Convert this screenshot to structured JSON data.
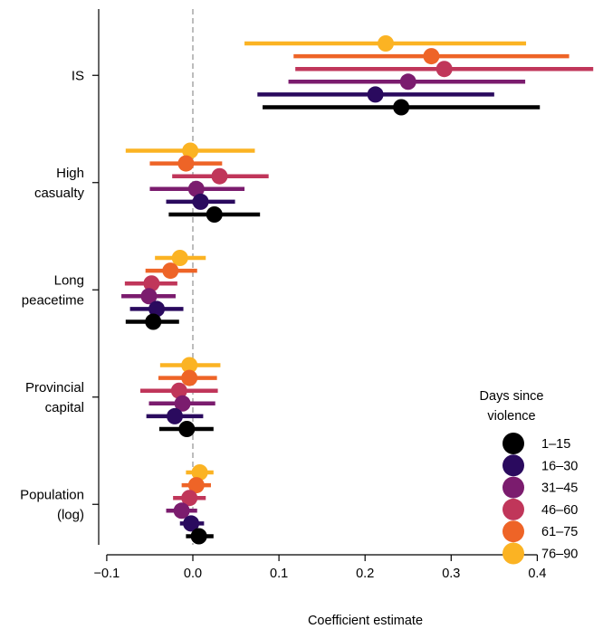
{
  "chart_data": {
    "type": "forest",
    "xlabel": "Coefficient estimate",
    "xlim": [
      -0.13,
      0.48
    ],
    "xticks": [
      -0.1,
      0.0,
      0.1,
      0.2,
      0.3,
      0.4
    ],
    "xtick_labels": [
      "−0.1",
      "0.0",
      "0.1",
      "0.2",
      "0.3",
      "0.4"
    ],
    "reference_line": 0.0,
    "legend": {
      "title_lines": [
        "Days since",
        "violence"
      ],
      "placement": "bottom-right"
    },
    "series": [
      {
        "name": "1–15",
        "color": "#000000"
      },
      {
        "name": "16–30",
        "color": "#2a0a5e"
      },
      {
        "name": "31–45",
        "color": "#7b1c6e"
      },
      {
        "name": "46–60",
        "color": "#c0365a"
      },
      {
        "name": "61–75",
        "color": "#ee6427"
      },
      {
        "name": "76–90",
        "color": "#fbb323"
      }
    ],
    "groups": [
      {
        "label_lines": [
          "IS"
        ],
        "estimates": [
          {
            "series": "76–90",
            "est": 0.224,
            "lo": 0.06,
            "hi": 0.387
          },
          {
            "series": "61–75",
            "est": 0.277,
            "lo": 0.117,
            "hi": 0.437
          },
          {
            "series": "46–60",
            "est": 0.292,
            "lo": 0.119,
            "hi": 0.465
          },
          {
            "series": "31–45",
            "est": 0.25,
            "lo": 0.111,
            "hi": 0.386
          },
          {
            "series": "16–30",
            "est": 0.212,
            "lo": 0.075,
            "hi": 0.35
          },
          {
            "series": "1–15",
            "est": 0.242,
            "lo": 0.081,
            "hi": 0.403
          }
        ]
      },
      {
        "label_lines": [
          "High",
          "casualty"
        ],
        "estimates": [
          {
            "series": "76–90",
            "est": -0.003,
            "lo": -0.078,
            "hi": 0.072
          },
          {
            "series": "61–75",
            "est": -0.008,
            "lo": -0.05,
            "hi": 0.034
          },
          {
            "series": "46–60",
            "est": 0.031,
            "lo": -0.024,
            "hi": 0.088
          },
          {
            "series": "31–45",
            "est": 0.004,
            "lo": -0.05,
            "hi": 0.06
          },
          {
            "series": "16–30",
            "est": 0.009,
            "lo": -0.031,
            "hi": 0.049
          },
          {
            "series": "1–15",
            "est": 0.025,
            "lo": -0.028,
            "hi": 0.078
          }
        ]
      },
      {
        "label_lines": [
          "Long",
          "peacetime"
        ],
        "estimates": [
          {
            "series": "76–90",
            "est": -0.015,
            "lo": -0.044,
            "hi": 0.015
          },
          {
            "series": "61–75",
            "est": -0.026,
            "lo": -0.055,
            "hi": 0.005
          },
          {
            "series": "46–60",
            "est": -0.048,
            "lo": -0.079,
            "hi": -0.018
          },
          {
            "series": "31–45",
            "est": -0.051,
            "lo": -0.083,
            "hi": -0.02
          },
          {
            "series": "16–30",
            "est": -0.042,
            "lo": -0.073,
            "hi": -0.011
          },
          {
            "series": "1–15",
            "est": -0.046,
            "lo": -0.078,
            "hi": -0.016
          }
        ]
      },
      {
        "label_lines": [
          "Provincial",
          "capital"
        ],
        "estimates": [
          {
            "series": "76–90",
            "est": -0.004,
            "lo": -0.038,
            "hi": 0.032
          },
          {
            "series": "61–75",
            "est": -0.004,
            "lo": -0.04,
            "hi": 0.028
          },
          {
            "series": "46–60",
            "est": -0.016,
            "lo": -0.061,
            "hi": 0.029
          },
          {
            "series": "31–45",
            "est": -0.012,
            "lo": -0.051,
            "hi": 0.026
          },
          {
            "series": "16–30",
            "est": -0.021,
            "lo": -0.054,
            "hi": 0.012
          },
          {
            "series": "1–15",
            "est": -0.007,
            "lo": -0.039,
            "hi": 0.024
          }
        ]
      },
      {
        "label_lines": [
          "Population",
          "(log)"
        ],
        "estimates": [
          {
            "series": "76–90",
            "est": 0.008,
            "lo": -0.008,
            "hi": 0.024
          },
          {
            "series": "61–75",
            "est": 0.004,
            "lo": -0.013,
            "hi": 0.021
          },
          {
            "series": "46–60",
            "est": -0.004,
            "lo": -0.023,
            "hi": 0.015
          },
          {
            "series": "31–45",
            "est": -0.013,
            "lo": -0.031,
            "hi": 0.005
          },
          {
            "series": "16–30",
            "est": -0.002,
            "lo": -0.015,
            "hi": 0.013
          },
          {
            "series": "1–15",
            "est": 0.007,
            "lo": -0.008,
            "hi": 0.024
          }
        ]
      }
    ]
  }
}
